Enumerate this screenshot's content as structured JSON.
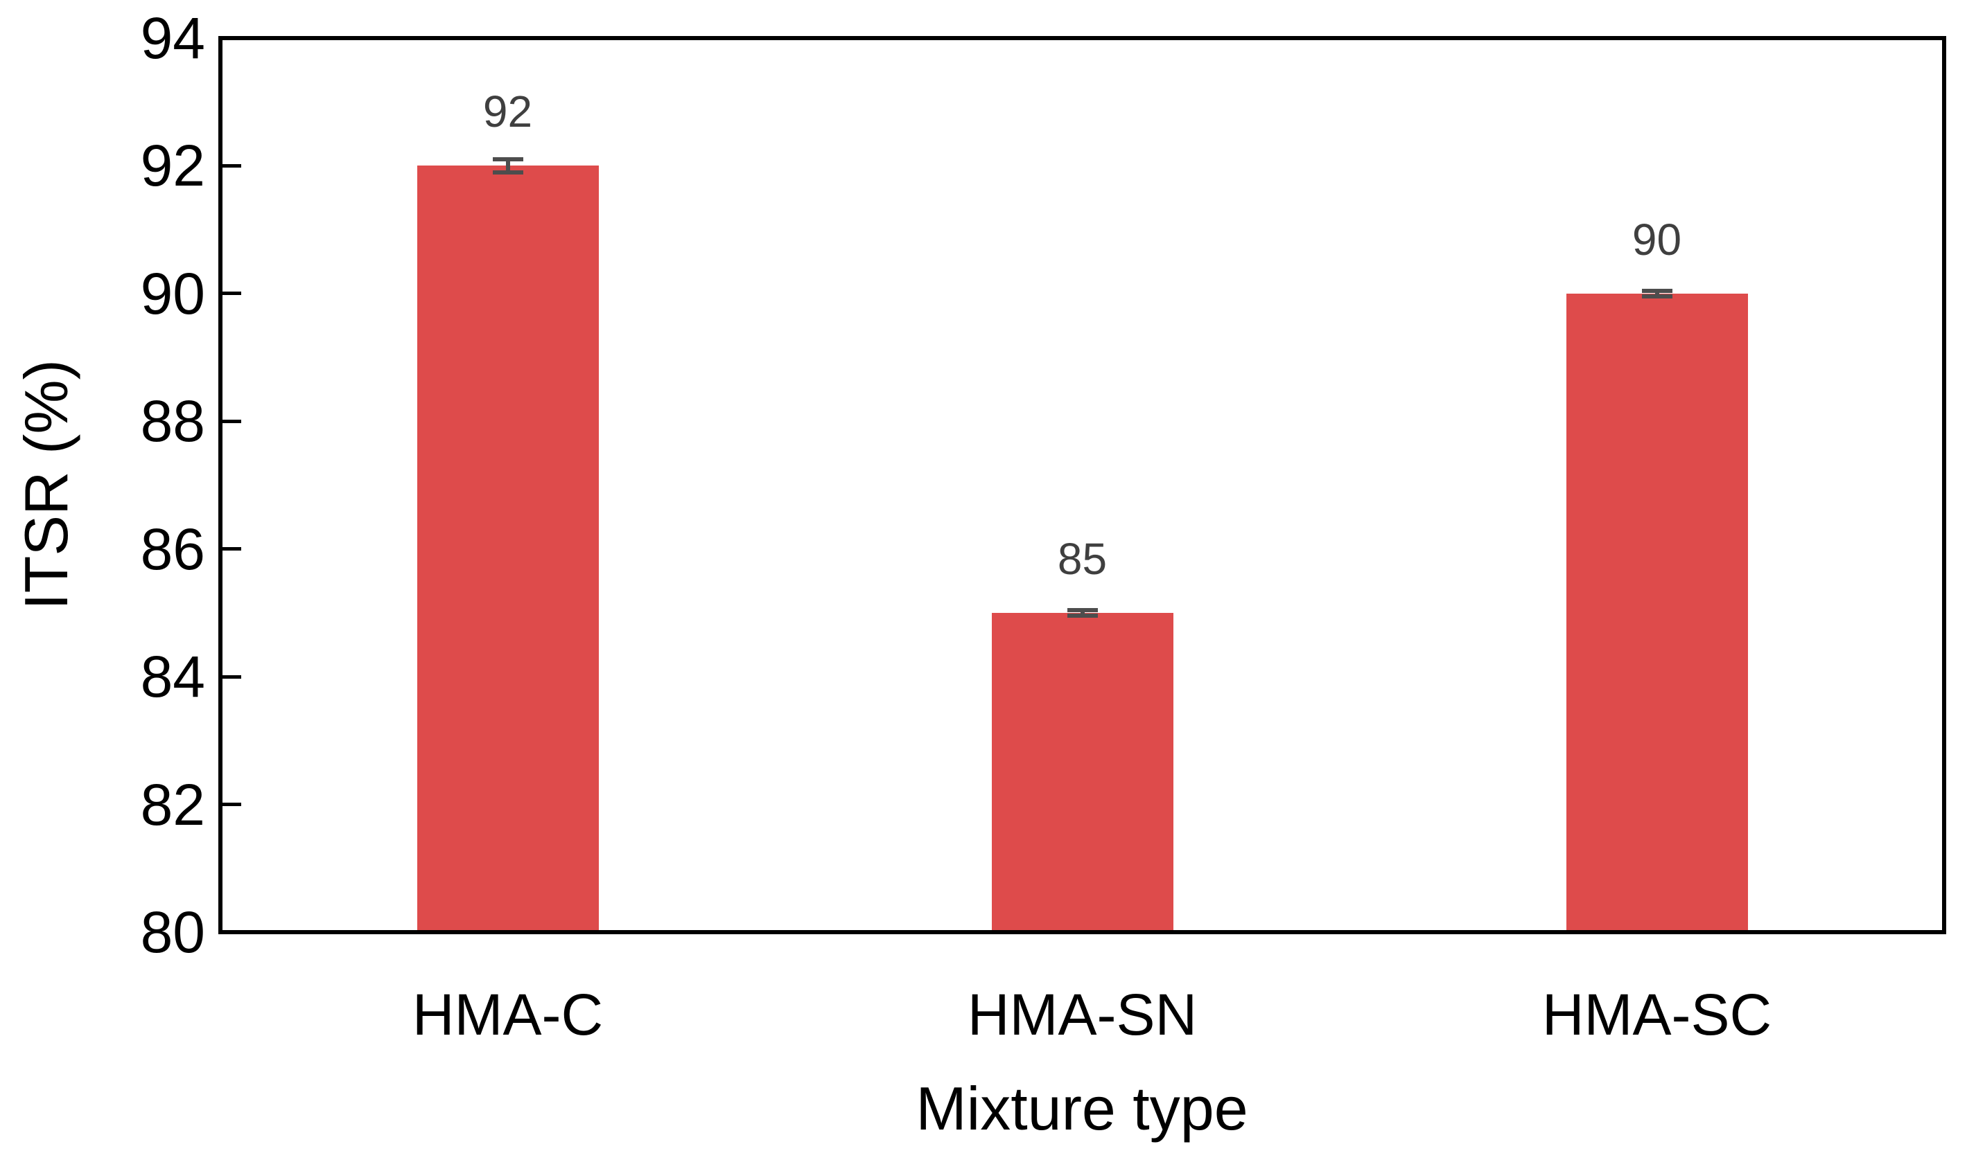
{
  "chart_data": {
    "type": "bar",
    "title": "",
    "xlabel": "Mixture type",
    "ylabel": "ITSR (%)",
    "categories": [
      "HMA-C",
      "HMA-SN",
      "HMA-SC"
    ],
    "values": [
      92,
      85,
      90
    ],
    "data_labels": [
      "92",
      "85",
      "90"
    ],
    "error_bars_plus_minus": [
      0.1,
      0.045,
      0.045
    ],
    "ylim": [
      80,
      94
    ],
    "yticks": [
      80,
      82,
      84,
      86,
      88,
      90,
      92,
      94
    ],
    "grid": false,
    "legend": false,
    "tick_style": "inside",
    "frame": "full-box",
    "bar_color": "#DE4B4B",
    "error_bar_color": "#4D4D4D",
    "data_label_color": "#3F3F3F",
    "axis_color": "#000000",
    "background_color": "#FFFFFF"
  }
}
